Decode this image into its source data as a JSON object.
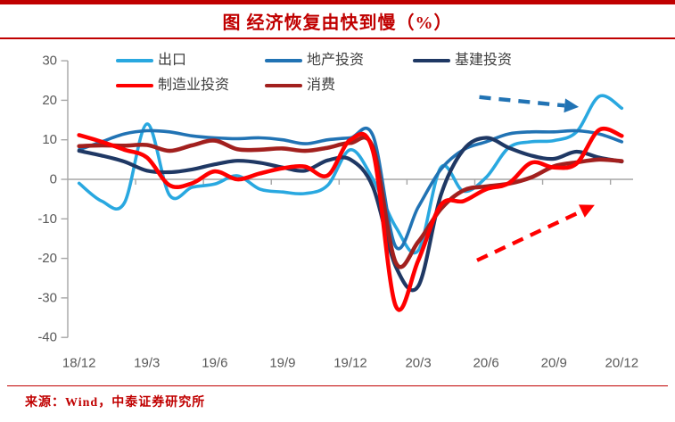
{
  "header": {
    "title": "图 经济恢复由快到慢（%）"
  },
  "footer": {
    "source": "来源：Wind，中泰证券研究所"
  },
  "colors": {
    "accent_red": "#C00000",
    "axis_line": "#A6A6A6",
    "axis_text": "#595959",
    "legend_text": "#3F3F3F",
    "export_blue": "#29A8E0",
    "realestate_blue": "#2173B4",
    "infra_navy": "#1F3864",
    "manufacturing_red": "#FF0000",
    "consumption_darkred": "#A2201E"
  },
  "chart_data": {
    "type": "line",
    "title": "图 经济恢复由快到慢（%）",
    "x": [
      "18/12",
      "19/1",
      "19/2",
      "19/3",
      "19/4",
      "19/5",
      "19/6",
      "19/7",
      "19/8",
      "19/9",
      "19/10",
      "19/11",
      "19/12",
      "20/1",
      "20/2",
      "20/3",
      "20/4",
      "20/5",
      "20/6",
      "20/7",
      "20/8",
      "20/9",
      "20/10",
      "20/11",
      "20/12"
    ],
    "xtick_labels": [
      "18/12",
      "19/3",
      "19/6",
      "19/9",
      "19/12",
      "20/3",
      "20/6",
      "20/9",
      "20/12"
    ],
    "ylim": [
      -40,
      30
    ],
    "yticks": [
      30,
      20,
      10,
      0,
      -10,
      -20,
      -30,
      -40
    ],
    "grid": false,
    "legend_position": "top",
    "series": [
      {
        "name": "出口",
        "color": "#29A8E0",
        "width": 3.6,
        "values": [
          -1,
          -5.5,
          -6,
          14,
          -4,
          -2,
          -1.2,
          0.9,
          -2.5,
          -3.2,
          -3.6,
          -1.5,
          7.5,
          0,
          -12,
          -18,
          3,
          -3,
          0.5,
          8,
          9.5,
          9.8,
          12,
          21,
          18
        ]
      },
      {
        "name": "地产投资",
        "color": "#2173B4",
        "width": 3.6,
        "values": [
          7.5,
          9.5,
          11.5,
          12.3,
          12,
          11,
          10.5,
          10.3,
          10.5,
          10,
          9,
          10,
          10.5,
          11,
          -17,
          -7,
          2.5,
          7.5,
          9.5,
          11.5,
          12,
          12,
          12.3,
          11.5,
          9.5
        ]
      },
      {
        "name": "基建投资",
        "color": "#1F3864",
        "width": 4.2,
        "values": [
          7.2,
          6,
          4.5,
          2.2,
          1.8,
          2.5,
          3.8,
          4.7,
          4.2,
          3,
          2.2,
          4.8,
          5,
          -2,
          -22,
          -27,
          -4,
          7.5,
          10.5,
          8,
          6,
          5.2,
          7,
          5.5,
          4.5
        ]
      },
      {
        "name": "制造业投资",
        "color": "#FF0000",
        "width": 4.6,
        "values": [
          11.2,
          9.5,
          7.5,
          5.5,
          -1.5,
          -1,
          2,
          0,
          1.5,
          2.8,
          3.2,
          1,
          10,
          7,
          -32,
          -20.5,
          -6.5,
          -5.5,
          -2.5,
          -1,
          4.2,
          3,
          4,
          12.5,
          11
        ]
      },
      {
        "name": "消费",
        "color": "#A2201E",
        "width": 4.6,
        "values": [
          8.4,
          8.6,
          8.5,
          8.7,
          7.2,
          8.6,
          9.8,
          7.6,
          7.5,
          7.8,
          7.2,
          8,
          9.2,
          8,
          -21,
          -15.8,
          -7.5,
          -2.8,
          -1.8,
          -1.1,
          0.5,
          3.3,
          4.3,
          5,
          4.6
        ]
      }
    ],
    "annotations": [
      {
        "type": "dashed-arrow",
        "name": "recovery-plateau-arrow",
        "color": "#2173B4",
        "from": {
          "month_index": 17.7,
          "value": 20.8
        },
        "to": {
          "month_index": 22.1,
          "value": 18.3
        }
      },
      {
        "type": "dashed-arrow",
        "name": "recovery-rising-arrow",
        "color": "#FF0000",
        "from": {
          "month_index": 17.6,
          "value": -20.5
        },
        "to": {
          "month_index": 22.8,
          "value": -6.5
        }
      }
    ]
  }
}
